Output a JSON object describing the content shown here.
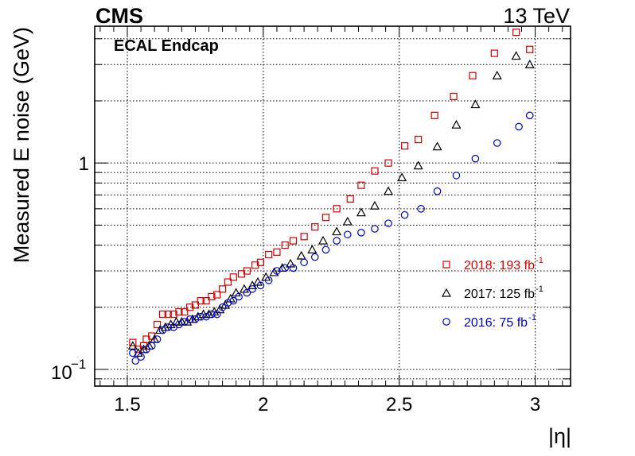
{
  "header": {
    "experiment": "CMS",
    "energy": "13 TeV",
    "region": "ECAL Endcap"
  },
  "chart_data": {
    "type": "scatter",
    "xlabel": "|η|",
    "ylabel": "Measured E noise (GeV)",
    "xlim": [
      1.38,
      3.13
    ],
    "ylim": [
      0.083,
      4.6
    ],
    "yscale": "log",
    "grid": true,
    "legend_position": "bottom-right",
    "x_ticks": [
      {
        "value": 1.5,
        "label": "1.5"
      },
      {
        "value": 2.0,
        "label": "2"
      },
      {
        "value": 2.5,
        "label": "2.5"
      },
      {
        "value": 3.0,
        "label": "3"
      }
    ],
    "y_ticks": [
      {
        "value": 0.1,
        "label_base": "10",
        "label_exp": "−1"
      },
      {
        "value": 1.0,
        "label_base": "1",
        "label_exp": ""
      }
    ],
    "series": [
      {
        "name_main": "2018: 193 fb",
        "name_exp": "-1",
        "marker": "square",
        "color": "#d40000",
        "x": [
          1.52,
          1.54,
          1.56,
          1.57,
          1.59,
          1.61,
          1.63,
          1.65,
          1.67,
          1.69,
          1.71,
          1.73,
          1.75,
          1.77,
          1.79,
          1.81,
          1.83,
          1.85,
          1.87,
          1.89,
          1.92,
          1.94,
          1.97,
          1.99,
          2.02,
          2.05,
          2.08,
          2.11,
          2.15,
          2.19,
          2.23,
          2.27,
          2.32,
          2.36,
          2.41,
          2.46,
          2.52,
          2.57,
          2.63,
          2.7,
          2.77,
          2.85,
          2.93,
          2.98
        ],
        "y": [
          0.135,
          0.125,
          0.13,
          0.14,
          0.145,
          0.165,
          0.185,
          0.185,
          0.185,
          0.19,
          0.19,
          0.2,
          0.205,
          0.215,
          0.215,
          0.225,
          0.23,
          0.245,
          0.265,
          0.28,
          0.29,
          0.3,
          0.32,
          0.33,
          0.36,
          0.37,
          0.4,
          0.42,
          0.44,
          0.49,
          0.545,
          0.6,
          0.67,
          0.78,
          0.915,
          1.0,
          1.21,
          1.3,
          1.7,
          2.1,
          2.65,
          3.4,
          4.3,
          3.55
        ]
      },
      {
        "name_main": "2017: 125 fb",
        "name_exp": "-1",
        "marker": "triangle",
        "color": "#000000",
        "x": [
          1.52,
          1.54,
          1.56,
          1.58,
          1.6,
          1.62,
          1.64,
          1.66,
          1.68,
          1.7,
          1.72,
          1.74,
          1.76,
          1.78,
          1.8,
          1.82,
          1.84,
          1.86,
          1.88,
          1.9,
          1.93,
          1.96,
          1.98,
          2.01,
          2.04,
          2.07,
          2.1,
          2.14,
          2.18,
          2.22,
          2.27,
          2.31,
          2.36,
          2.41,
          2.46,
          2.51,
          2.57,
          2.64,
          2.71,
          2.78,
          2.86,
          2.93,
          2.98
        ],
        "y": [
          0.13,
          0.12,
          0.125,
          0.13,
          0.14,
          0.155,
          0.16,
          0.165,
          0.17,
          0.17,
          0.17,
          0.175,
          0.18,
          0.185,
          0.185,
          0.19,
          0.195,
          0.205,
          0.22,
          0.235,
          0.245,
          0.255,
          0.265,
          0.28,
          0.295,
          0.31,
          0.325,
          0.355,
          0.38,
          0.42,
          0.465,
          0.52,
          0.575,
          0.62,
          0.73,
          0.85,
          0.97,
          1.2,
          1.53,
          1.92,
          2.65,
          3.3,
          3.0
        ]
      },
      {
        "name_main": "2016: 75 fb",
        "name_exp": "-1",
        "marker": "circle",
        "color": "#0000cc",
        "x": [
          1.52,
          1.53,
          1.55,
          1.57,
          1.59,
          1.61,
          1.63,
          1.65,
          1.67,
          1.69,
          1.71,
          1.73,
          1.75,
          1.77,
          1.79,
          1.81,
          1.83,
          1.85,
          1.87,
          1.89,
          1.91,
          1.94,
          1.96,
          1.99,
          2.02,
          2.05,
          2.08,
          2.11,
          2.15,
          2.19,
          2.23,
          2.27,
          2.31,
          2.36,
          2.41,
          2.46,
          2.52,
          2.58,
          2.64,
          2.71,
          2.78,
          2.86,
          2.94,
          2.98
        ],
        "y": [
          0.12,
          0.11,
          0.115,
          0.125,
          0.13,
          0.14,
          0.155,
          0.16,
          0.16,
          0.165,
          0.17,
          0.175,
          0.175,
          0.18,
          0.18,
          0.185,
          0.185,
          0.2,
          0.21,
          0.215,
          0.225,
          0.235,
          0.245,
          0.255,
          0.27,
          0.3,
          0.31,
          0.31,
          0.33,
          0.35,
          0.38,
          0.42,
          0.45,
          0.46,
          0.48,
          0.51,
          0.56,
          0.6,
          0.73,
          0.87,
          1.05,
          1.25,
          1.5,
          1.7
        ]
      }
    ]
  }
}
